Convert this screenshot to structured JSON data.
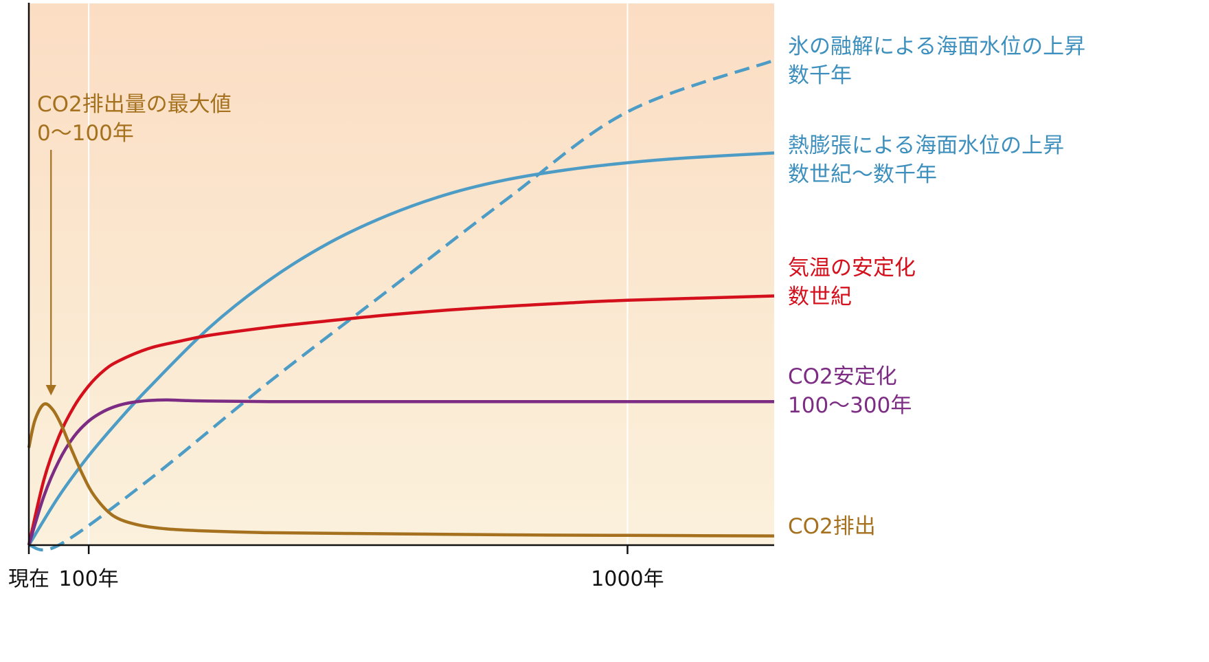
{
  "chart_data": {
    "type": "line",
    "title": "",
    "xlabel": "",
    "ylabel": "",
    "x_ticks": [
      {
        "label": "現在",
        "value": 0
      },
      {
        "label": "100年",
        "value": 100
      },
      {
        "label": "1000年",
        "value": 1000
      }
    ],
    "xlim": [
      0,
      1245
    ],
    "ylim": [
      0,
      1
    ],
    "grid": "vertical lines at 100年 and 1000年",
    "background_gradient": [
      "#fbddc3",
      "#fbf1dc"
    ],
    "series": [
      {
        "name": "CO2排出",
        "color": "#a5711e",
        "dash": false,
        "x": [
          0,
          10,
          25,
          40,
          55,
          70,
          90,
          110,
          140,
          180,
          230,
          300,
          400,
          600,
          800,
          1000,
          1245
        ],
        "y": [
          0.18,
          0.23,
          0.26,
          0.25,
          0.22,
          0.18,
          0.13,
          0.09,
          0.055,
          0.038,
          0.03,
          0.026,
          0.023,
          0.021,
          0.019,
          0.018,
          0.017
        ]
      },
      {
        "name": "CO2安定化",
        "color": "#7d2c84",
        "dash": false,
        "x": [
          0,
          25,
          50,
          75,
          100,
          125,
          150,
          175,
          200,
          230,
          260,
          300,
          400,
          600,
          800,
          1000,
          1245
        ],
        "y": [
          0,
          0.09,
          0.155,
          0.2,
          0.229,
          0.247,
          0.258,
          0.264,
          0.267,
          0.268,
          0.267,
          0.266,
          0.265,
          0.265,
          0.265,
          0.265,
          0.265
        ]
      },
      {
        "name": "気温の安定化",
        "color": "#d4101d",
        "dash": false,
        "x": [
          0,
          25,
          50,
          75,
          100,
          125,
          150,
          200,
          250,
          300,
          400,
          500,
          600,
          700,
          800,
          900,
          1000,
          1245
        ],
        "y": [
          0,
          0.12,
          0.2,
          0.255,
          0.294,
          0.322,
          0.34,
          0.363,
          0.376,
          0.387,
          0.402,
          0.414,
          0.425,
          0.434,
          0.441,
          0.447,
          0.452,
          0.46
        ]
      },
      {
        "name": "熱膨張による海面水位の上昇",
        "color": "#4d9cc6",
        "dash": false,
        "x": [
          0,
          50,
          100,
          150,
          200,
          300,
          400,
          500,
          600,
          700,
          800,
          900,
          1000,
          1100,
          1245
        ],
        "y": [
          0,
          0.09,
          0.165,
          0.23,
          0.29,
          0.4,
          0.488,
          0.557,
          0.609,
          0.648,
          0.675,
          0.693,
          0.706,
          0.715,
          0.724
        ]
      },
      {
        "name": "氷の融解による海面水位の上昇",
        "color": "#4d9cc6",
        "dash": true,
        "x": [
          0,
          50,
          200,
          400,
          600,
          800,
          1000,
          1245
        ],
        "y": [
          0,
          0,
          0.12,
          0.3,
          0.47,
          0.64,
          0.8,
          0.895
        ]
      }
    ],
    "annotations": [
      {
        "lines": [
          "CO2排出量の最大値",
          "0〜100年"
        ],
        "color": "#a5711e",
        "arrow_to": {
          "x": 37,
          "y": 0.265
        }
      }
    ],
    "legend": [
      {
        "lines": [
          "氷の融解による海面水位の上昇",
          "数千年"
        ],
        "color": "#3d8fbd"
      },
      {
        "lines": [
          "熱膨張による海面水位の上昇",
          "数世紀〜数千年"
        ],
        "color": "#3d8fbd"
      },
      {
        "lines": [
          "気温の安定化",
          "数世紀"
        ],
        "color": "#d4101d"
      },
      {
        "lines": [
          "CO2安定化",
          "100〜300年"
        ],
        "color": "#7d2c84"
      },
      {
        "lines": [
          "CO2排出"
        ],
        "color": "#a5711e"
      }
    ]
  }
}
